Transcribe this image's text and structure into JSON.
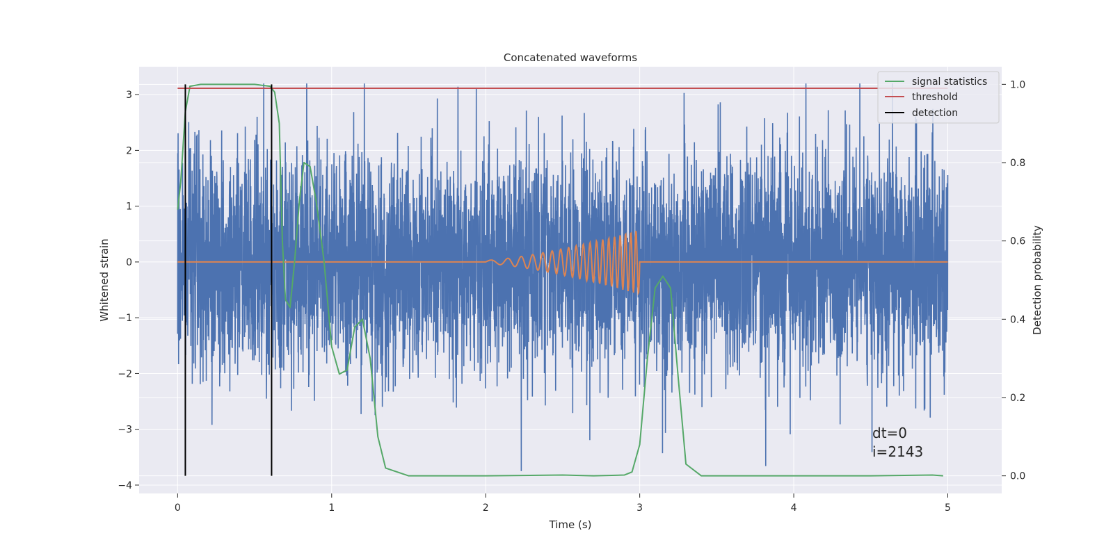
{
  "chart_data": {
    "type": "line",
    "title": "Concatenated waveforms",
    "xlabel": "Time (s)",
    "ylabel": "Whitened strain",
    "y2label": "Detection probability",
    "xlim": [
      -0.25,
      5.35
    ],
    "ylim": [
      -4.15,
      3.5
    ],
    "y2lim": [
      -0.045,
      1.045
    ],
    "xticks": [
      0,
      1,
      2,
      3,
      4,
      5
    ],
    "xtick_labels": [
      "0",
      "1",
      "2",
      "3",
      "4",
      "5"
    ],
    "yticks": [
      -4,
      -3,
      -2,
      -1,
      0,
      1,
      2,
      3
    ],
    "ytick_labels": [
      "−4",
      "−3",
      "−2",
      "−1",
      "0",
      "1",
      "2",
      "3"
    ],
    "y2ticks": [
      0.0,
      0.2,
      0.4,
      0.6,
      0.8,
      1.0
    ],
    "y2tick_labels": [
      "0.0",
      "0.2",
      "0.4",
      "0.6",
      "0.8",
      "1.0"
    ],
    "grid": true,
    "legend_position": "top-right",
    "colors": {
      "strain": "#4c72b0",
      "template": "#dd8452",
      "signal_statistics": "#55a868",
      "threshold": "#c44e52",
      "detection": "#000000",
      "background": "#eaeaf2",
      "grid": "#ffffff"
    },
    "noise": {
      "x_range": [
        0,
        5
      ],
      "amplitude_typical": 1.0,
      "max": 3.2,
      "min": -3.75,
      "axis": "left"
    },
    "template": {
      "x_range": [
        2,
        3
      ],
      "peak_amplitude": 0.58,
      "axis": "left"
    },
    "series": [
      {
        "name": "signal statistics",
        "axis": "right",
        "x": [
          0,
          0.02,
          0.05,
          0.08,
          0.15,
          0.3,
          0.5,
          0.6,
          0.63,
          0.66,
          0.68,
          0.7,
          0.73,
          0.76,
          0.79,
          0.82,
          0.86,
          0.9,
          0.95,
          1.0,
          1.05,
          1.1,
          1.15,
          1.2,
          1.25,
          1.3,
          1.35,
          1.5,
          2.0,
          2.5,
          2.7,
          2.9,
          2.95,
          3.0,
          3.05,
          3.1,
          3.15,
          3.2,
          3.25,
          3.3,
          3.4,
          3.6,
          4.0,
          4.5,
          4.9,
          4.97
        ],
        "y": [
          0.68,
          0.75,
          0.93,
          0.995,
          1.0,
          1.0,
          1.0,
          0.995,
          0.98,
          0.9,
          0.6,
          0.45,
          0.43,
          0.55,
          0.7,
          0.8,
          0.79,
          0.7,
          0.55,
          0.33,
          0.26,
          0.27,
          0.38,
          0.4,
          0.3,
          0.1,
          0.02,
          0.0,
          0.0,
          0.002,
          0.0,
          0.002,
          0.01,
          0.08,
          0.3,
          0.48,
          0.51,
          0.48,
          0.25,
          0.03,
          0.0,
          0.0,
          0.0,
          0.0,
          0.002,
          0.0
        ]
      },
      {
        "name": "threshold",
        "axis": "right",
        "x": [
          0,
          5
        ],
        "y": [
          0.99,
          0.99
        ]
      },
      {
        "name": "detection",
        "axis": "right",
        "type": "vlines",
        "x": [
          0.05,
          0.61
        ],
        "y": [
          0.0,
          1.0
        ]
      }
    ],
    "annotations": [
      "dt=0",
      "i=2143"
    ]
  }
}
